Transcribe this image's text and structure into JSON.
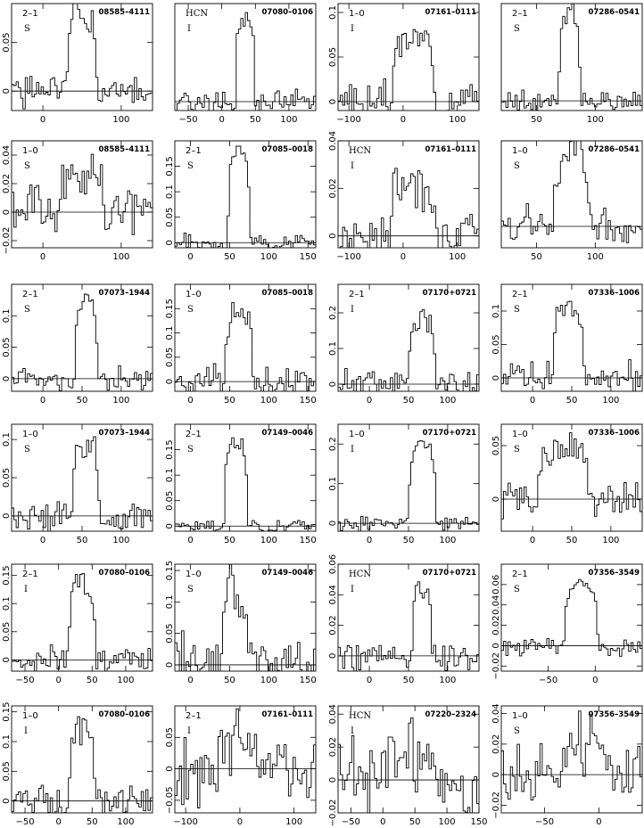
{
  "chart_data": [
    {
      "type": "line",
      "transition": "2–1",
      "tracer": "S",
      "source": "08585–4111",
      "xlim": [
        -40,
        140
      ],
      "ylim": [
        -0.02,
        0.09
      ],
      "xticks": [
        0,
        100
      ],
      "yticks": [
        0,
        0.05
      ],
      "peak": 0.08,
      "center": 50,
      "width": 38,
      "noise": 0.012,
      "seed": 1
    },
    {
      "type": "line",
      "transition": "HCN",
      "tracer": "I",
      "source": "07080–0106",
      "xlim": [
        -70,
        140
      ],
      "ylim": [
        -0.005,
        0.055
      ],
      "xticks": [
        -50,
        0,
        50,
        100
      ],
      "yticks": [],
      "peak": 0.045,
      "center": 35,
      "width": 30,
      "noise": 0.004,
      "seed": 2
    },
    {
      "type": "line",
      "transition": "1–0",
      "tracer": "I",
      "source": "07161–0111",
      "xlim": [
        -120,
        140
      ],
      "ylim": [
        -0.01,
        0.11
      ],
      "xticks": [
        -100,
        0,
        100
      ],
      "yticks": [
        0,
        0.05,
        0.1
      ],
      "peak": 0.07,
      "center": 20,
      "width": 80,
      "noise": 0.012,
      "seed": 3
    },
    {
      "type": "line",
      "transition": "2–1",
      "tracer": "S",
      "source": "07286–0541",
      "xlim": [
        20,
        140
      ],
      "ylim": [
        -0.002,
        0.02
      ],
      "xticks": [
        50,
        100
      ],
      "yticks": [],
      "peak": 0.018,
      "center": 78,
      "width": 18,
      "noise": 0.0015,
      "seed": 4
    },
    {
      "type": "line",
      "transition": "1–0",
      "tracer": "S",
      "source": "08585–4111",
      "xlim": [
        -40,
        140
      ],
      "ylim": [
        -0.025,
        0.05
      ],
      "xticks": [
        0,
        100
      ],
      "yticks": [
        -0.02,
        0,
        0.02,
        0.04
      ],
      "peak": 0.03,
      "center": 50,
      "width": 55,
      "noise": 0.012,
      "seed": 5
    },
    {
      "type": "line",
      "transition": "2–1",
      "tracer": "S",
      "source": "07085–0018",
      "xlim": [
        -20,
        160
      ],
      "ylim": [
        -0.01,
        0.2
      ],
      "xticks": [
        0,
        50,
        100,
        150
      ],
      "yticks": [
        0,
        0.05,
        0.1,
        0.15
      ],
      "peak": 0.18,
      "center": 62,
      "width": 28,
      "noise": 0.01,
      "seed": 6
    },
    {
      "type": "line",
      "transition": "HCN",
      "tracer": "I",
      "source": "07161–0111",
      "xlim": [
        -120,
        140
      ],
      "ylim": [
        -0.005,
        0.04
      ],
      "xticks": [
        -100,
        0,
        100
      ],
      "yticks": [
        0,
        0.02,
        0.04
      ],
      "peak": 0.022,
      "center": 20,
      "width": 90,
      "noise": 0.006,
      "seed": 7
    },
    {
      "type": "line",
      "transition": "1–0",
      "tracer": "S",
      "source": "07286–0541",
      "xlim": [
        20,
        140
      ],
      "ylim": [
        -0.02,
        0.08
      ],
      "xticks": [
        50,
        100
      ],
      "yticks": [],
      "peak": 0.065,
      "center": 80,
      "width": 30,
      "noise": 0.012,
      "seed": 8
    },
    {
      "type": "line",
      "transition": "2–1",
      "tracer": "S",
      "source": "07073–1944",
      "xlim": [
        -40,
        140
      ],
      "ylim": [
        -0.02,
        0.15
      ],
      "xticks": [
        0,
        50,
        100
      ],
      "yticks": [
        0,
        0.05,
        0.1
      ],
      "peak": 0.12,
      "center": 55,
      "width": 30,
      "noise": 0.012,
      "seed": 9
    },
    {
      "type": "line",
      "transition": "1–0",
      "tracer": "S",
      "source": "07085–0018",
      "xlim": [
        -20,
        160
      ],
      "ylim": [
        -0.02,
        0.2
      ],
      "xticks": [
        0,
        50,
        100,
        150
      ],
      "yticks": [
        0,
        0.05,
        0.1,
        0.15
      ],
      "peak": 0.15,
      "center": 62,
      "width": 35,
      "noise": 0.02,
      "seed": 10
    },
    {
      "type": "line",
      "transition": "2–1",
      "tracer": "I",
      "source": "07170+0721",
      "xlim": [
        -40,
        140
      ],
      "ylim": [
        -0.02,
        0.28
      ],
      "xticks": [
        0,
        50,
        100
      ],
      "yticks": [
        0,
        0.1,
        0.2
      ],
      "peak": 0.18,
      "center": 68,
      "width": 35,
      "noise": 0.03,
      "seed": 11
    },
    {
      "type": "line",
      "transition": "2–1",
      "tracer": "S",
      "source": "07336–1006",
      "xlim": [
        -40,
        140
      ],
      "ylim": [
        -0.02,
        0.14
      ],
      "xticks": [
        0,
        50,
        100
      ],
      "yticks": [
        0,
        0.05,
        0.1
      ],
      "peak": 0.11,
      "center": 45,
      "width": 40,
      "noise": 0.015,
      "seed": 12
    },
    {
      "type": "line",
      "transition": "1–0",
      "tracer": "S",
      "source": "07073–1944",
      "xlim": [
        -40,
        140
      ],
      "ylim": [
        -0.02,
        0.12
      ],
      "xticks": [
        0,
        50,
        100
      ],
      "yticks": [
        0,
        0.05,
        0.1
      ],
      "peak": 0.09,
      "center": 55,
      "width": 35,
      "noise": 0.013,
      "seed": 13
    },
    {
      "type": "line",
      "transition": "2–1",
      "tracer": "S",
      "source": "07149–0046",
      "xlim": [
        -20,
        160
      ],
      "ylim": [
        -0.01,
        0.2
      ],
      "xticks": [
        0,
        50,
        100,
        150
      ],
      "yticks": [
        0,
        0.05,
        0.1,
        0.15
      ],
      "peak": 0.16,
      "center": 58,
      "width": 30,
      "noise": 0.008,
      "seed": 14
    },
    {
      "type": "line",
      "transition": "1–0",
      "tracer": "I",
      "source": "07170+0721",
      "xlim": [
        -40,
        140
      ],
      "ylim": [
        -0.02,
        0.25
      ],
      "xticks": [
        0,
        50,
        100
      ],
      "yticks": [
        0,
        0.1,
        0.2
      ],
      "peak": 0.2,
      "center": 68,
      "width": 35,
      "noise": 0.01,
      "seed": 15
    },
    {
      "type": "line",
      "transition": "1–0",
      "tracer": "S",
      "source": "07336–1006",
      "xlim": [
        -40,
        140
      ],
      "ylim": [
        -0.03,
        0.07
      ],
      "xticks": [
        0,
        50,
        100
      ],
      "yticks": [
        0,
        0.05
      ],
      "peak": 0.05,
      "center": 40,
      "width": 65,
      "noise": 0.012,
      "seed": 16
    },
    {
      "type": "line",
      "transition": "2–1",
      "tracer": "I",
      "source": "07080–0106",
      "xlim": [
        -70,
        140
      ],
      "ylim": [
        -0.02,
        0.17
      ],
      "xticks": [
        -50,
        0,
        50,
        100
      ],
      "yticks": [
        0,
        0.05,
        0.1,
        0.15
      ],
      "peak": 0.14,
      "center": 35,
      "width": 40,
      "noise": 0.015,
      "seed": 17
    },
    {
      "type": "line",
      "transition": "1–0",
      "tracer": "S",
      "source": "07149–0046",
      "xlim": [
        -20,
        160
      ],
      "ylim": [
        -0.01,
        0.16
      ],
      "xticks": [
        0,
        50,
        100,
        150
      ],
      "yticks": [
        0,
        0.05,
        0.1,
        0.15
      ],
      "peak": 0.11,
      "center": 58,
      "width": 40,
      "noise": 0.03,
      "seed": 18
    },
    {
      "type": "line",
      "transition": "HCN",
      "tracer": "I",
      "source": "07170+0721",
      "xlim": [
        -40,
        140
      ],
      "ylim": [
        -0.01,
        0.06
      ],
      "xticks": [
        0,
        50,
        100
      ],
      "yticks": [
        0,
        0.02,
        0.04,
        0.06
      ],
      "peak": 0.045,
      "center": 68,
      "width": 25,
      "noise": 0.006,
      "seed": 19
    },
    {
      "type": "line",
      "transition": "2–1",
      "tracer": "S",
      "source": "07356–3549",
      "xlim": [
        -100,
        50
      ],
      "ylim": [
        -0.025,
        0.08
      ],
      "xticks": [
        -50,
        0
      ],
      "yticks": [
        -0.02,
        0,
        0.02,
        0.04,
        0.06
      ],
      "peak": 0.06,
      "center": -15,
      "width": 35,
      "noise": 0.005,
      "seed": 20
    },
    {
      "type": "line",
      "transition": "1–0",
      "tracer": "I",
      "source": "07080–0106",
      "xlim": [
        -70,
        140
      ],
      "ylim": [
        -0.02,
        0.16
      ],
      "xticks": [
        -50,
        0,
        50,
        100
      ],
      "yticks": [
        0,
        0.05,
        0.1,
        0.15
      ],
      "peak": 0.12,
      "center": 35,
      "width": 40,
      "noise": 0.015,
      "seed": 21
    },
    {
      "type": "line",
      "transition": "2–1",
      "tracer": "I",
      "source": "07161–0111",
      "xlim": [
        -120,
        140
      ],
      "ylim": [
        -0.07,
        0.1
      ],
      "xticks": [
        -100,
        0,
        100
      ],
      "yticks": [
        -0.05,
        0,
        0.05
      ],
      "peak": 0.04,
      "center": 0,
      "width": 90,
      "noise": 0.03,
      "seed": 22
    },
    {
      "type": "line",
      "transition": "HCN",
      "tracer": "I",
      "source": "07220–2324",
      "xlim": [
        -70,
        150
      ],
      "ylim": [
        -0.02,
        0.045
      ],
      "xticks": [
        -50,
        0,
        50,
        100,
        150
      ],
      "yticks": [
        -0.02,
        0,
        0.02,
        0.04
      ],
      "peak": 0.015,
      "center": 40,
      "width": 80,
      "noise": 0.014,
      "seed": 23
    },
    {
      "type": "line",
      "transition": "1–0",
      "tracer": "S",
      "source": "07356–3549",
      "xlim": [
        -90,
        40
      ],
      "ylim": [
        -0.025,
        0.045
      ],
      "xticks": [
        -50,
        0
      ],
      "yticks": [
        -0.02,
        0,
        0.02,
        0.04
      ],
      "peak": 0.02,
      "center": -10,
      "width": 45,
      "noise": 0.012,
      "seed": 24
    }
  ]
}
